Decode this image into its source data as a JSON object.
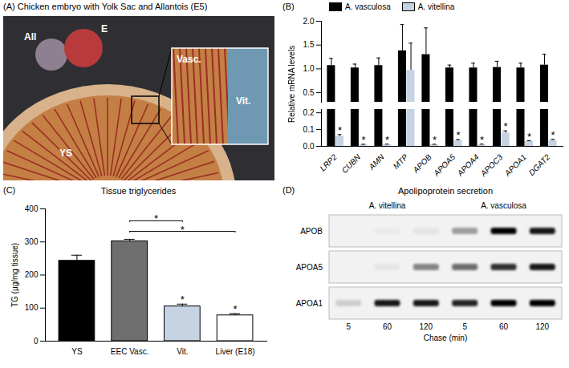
{
  "image_panel": {
    "panel": "(A)",
    "title": "Chicken embryo with Yolk Sac and Allantois (E5)",
    "labels": [
      "All",
      "E",
      "YS"
    ],
    "inset_labels": [
      "Vasc.",
      "Vit."
    ]
  },
  "chart_data": [
    {
      "panel": "(B)",
      "type": "bar",
      "categories": [
        "LRP2",
        "CUBN",
        "AMN",
        "MTP",
        "APOB",
        "APOA5",
        "APOA4",
        "APOC3",
        "APOA1",
        "DGAT2"
      ],
      "series": [
        {
          "name": "A. vasculosa",
          "color": "#000000",
          "values": [
            1.07,
            1.02,
            1.07,
            1.38,
            1.3,
            1.02,
            1.02,
            1.03,
            1.02,
            1.08
          ],
          "errors": [
            0.15,
            0.08,
            0.16,
            0.55,
            0.56,
            0.06,
            0.1,
            0.13,
            0.1,
            0.23
          ]
        },
        {
          "name": "A. vitellina",
          "color": "#c6d3e3",
          "values": [
            0.06,
            0.01,
            0.01,
            0.97,
            0.01,
            0.035,
            0.01,
            0.08,
            0.03,
            0.035
          ],
          "errors": [
            0.01,
            0.002,
            0.003,
            0.57,
            0.002,
            0.005,
            0.003,
            0.012,
            0.003,
            0.006
          ],
          "annotations": [
            "*",
            "*",
            "*",
            null,
            "*",
            "*",
            "*",
            "*",
            "*",
            "*"
          ]
        }
      ],
      "ylabel": "Relative mRNA levels",
      "ylim": [
        0,
        2
      ],
      "y_break": [
        0.22,
        0.3
      ],
      "yticks": [
        {
          "value": 0,
          "label": "0.0"
        },
        0.1,
        0.2,
        0.5,
        {
          "value": 1,
          "label": "1.0"
        },
        1.5,
        {
          "value": 2,
          "label": "2.0"
        }
      ],
      "legend": "top"
    },
    {
      "panel": "(C)",
      "type": "bar",
      "title": "Tissue triglycerides",
      "categories": [
        "YS",
        "EEC Vasc.",
        "Vit.",
        "Liver (E18)"
      ],
      "values": [
        243,
        302,
        105,
        78
      ],
      "errors": [
        17,
        6,
        7,
        5
      ],
      "colors": [
        "#000000",
        "#6e6e6e",
        "#c6d3e3",
        "#ffffff"
      ],
      "annotations": [
        null,
        null,
        "*",
        "*"
      ],
      "comparisons": [
        {
          "from": "EEC Vasc.",
          "to": "Vit.",
          "label": "*"
        },
        {
          "from": "EEC Vasc.",
          "to": "Liver (E18)",
          "label": "*"
        }
      ],
      "ylabel": "TG (µg/mg tissue)",
      "ylim": [
        0,
        400
      ],
      "yticks": [
        0,
        100,
        200,
        300,
        400
      ]
    }
  ],
  "blot": {
    "panel": "(D)",
    "title": "Apolipoprotein secretion",
    "groups": [
      {
        "name": "A. vitellina",
        "lanes": [
          5,
          60,
          120
        ]
      },
      {
        "name": "A. vasculosa",
        "lanes": [
          5,
          60,
          120
        ]
      }
    ],
    "rows": [
      {
        "name": "APOB",
        "intensity": [
          0,
          0.03,
          0.06,
          0.35,
          1,
          0.9
        ]
      },
      {
        "name": "APOA5",
        "intensity": [
          0,
          0.05,
          0.45,
          0.55,
          0.8,
          0.9
        ]
      },
      {
        "name": "APOA1",
        "intensity": [
          0.15,
          0.9,
          0.9,
          0.85,
          1,
          1
        ]
      }
    ],
    "xlabel": "Chase (min)"
  }
}
